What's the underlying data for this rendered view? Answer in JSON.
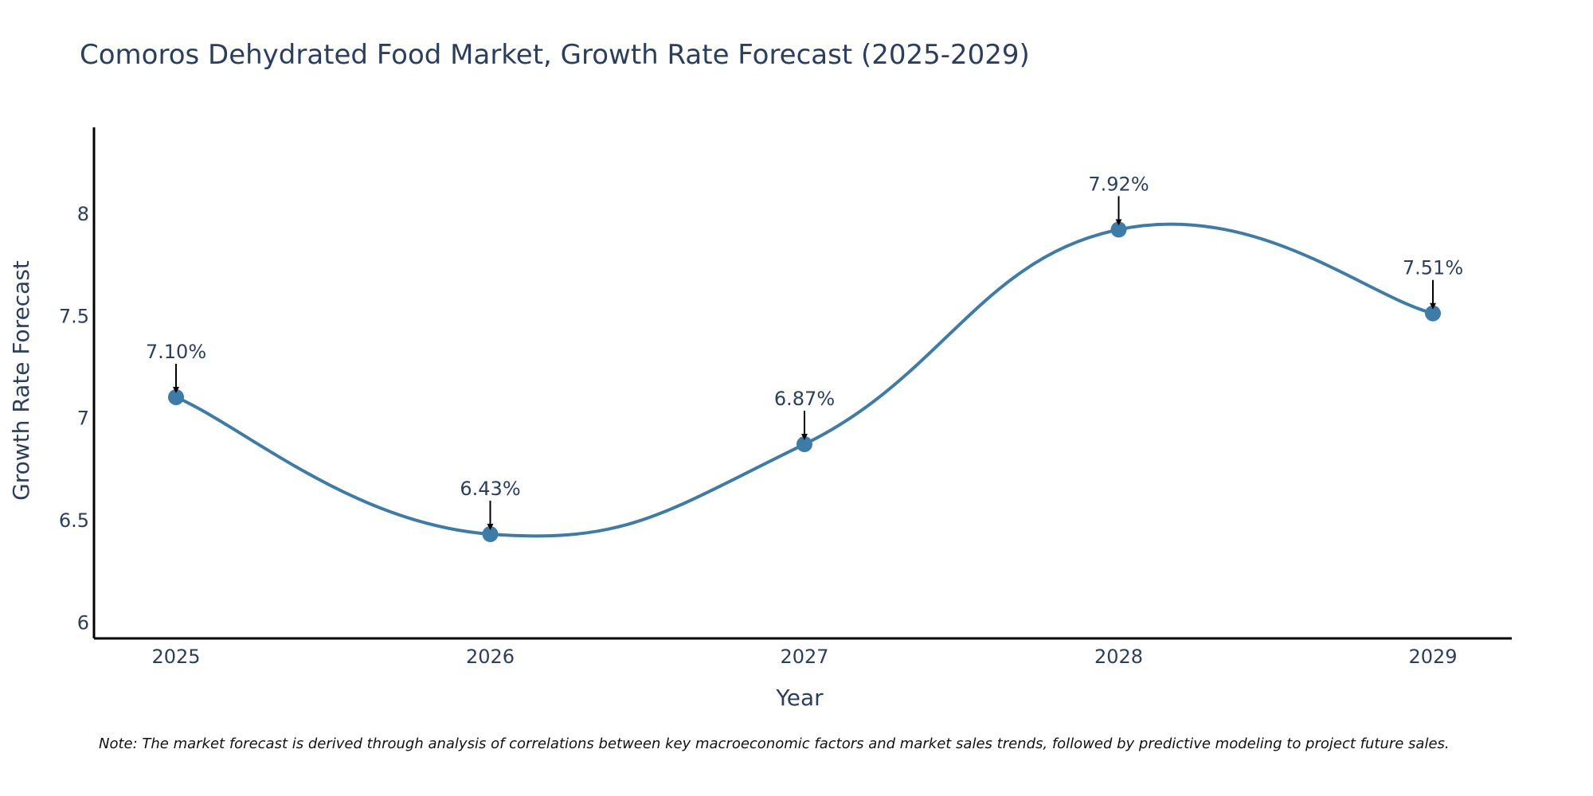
{
  "chart_data": {
    "type": "line",
    "title": "Comoros Dehydrated Food Market, Growth Rate Forecast (2025-2029)",
    "xlabel": "Year",
    "ylabel": "Growth Rate Forecast",
    "categories": [
      "2025",
      "2026",
      "2027",
      "2028",
      "2029"
    ],
    "series": [
      {
        "name": "Growth Rate Forecast",
        "values": [
          7.1,
          6.43,
          6.87,
          7.92,
          7.51
        ],
        "labels": [
          "7.10%",
          "6.43%",
          "6.87%",
          "7.92%",
          "7.51%"
        ]
      }
    ],
    "ylim": [
      5.92,
      8.42
    ],
    "yticks": [
      6,
      6.5,
      7,
      7.5,
      8
    ],
    "ytick_labels": [
      "6",
      "6.5",
      "7",
      "7.5",
      "8"
    ],
    "grid": false,
    "line_color": "#3d7ba8",
    "marker_color": "#3d7ba8",
    "arrow_color": "#000000",
    "note": "Note: The market forecast is derived through analysis of correlations between key macroeconomic factors and market sales trends, followed by predictive modeling to project future sales."
  }
}
